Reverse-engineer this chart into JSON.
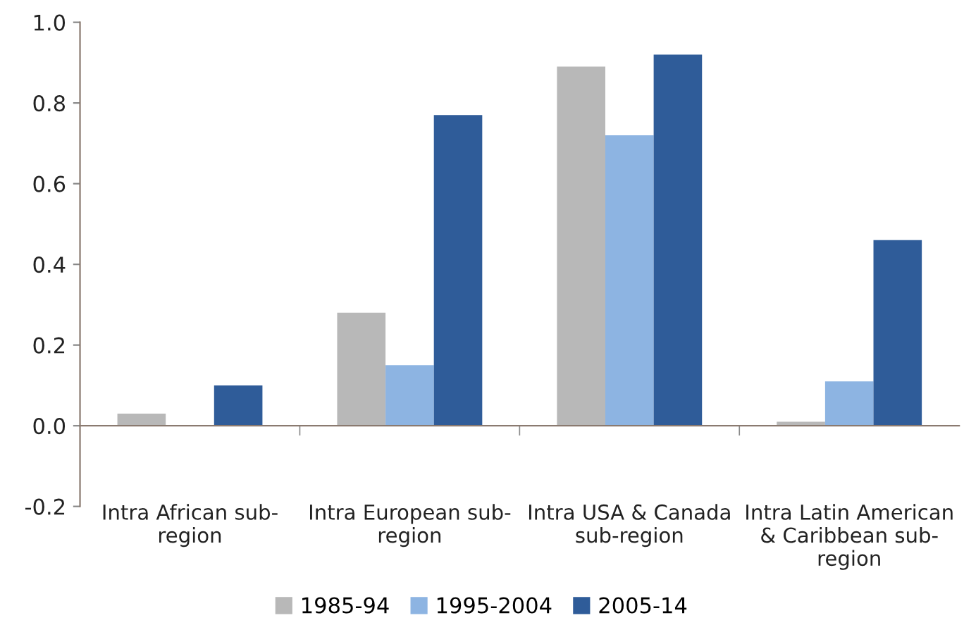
{
  "chart_data": {
    "type": "bar",
    "categories": [
      "Intra African sub-\nregion",
      "Intra European sub-\nregion",
      "Intra USA & Canada\nsub-region",
      "Intra Latin American\n& Caribbean sub-\nregion"
    ],
    "series": [
      {
        "name": "1985-94",
        "color": "#b8b8b8",
        "values": [
          0.03,
          0.28,
          0.89,
          0.01
        ]
      },
      {
        "name": "1995-2004",
        "color": "#8db4e2",
        "values": [
          null,
          0.15,
          0.72,
          0.11
        ]
      },
      {
        "name": "2005-14",
        "color": "#2f5c99",
        "values": [
          0.1,
          0.77,
          0.92,
          0.46
        ]
      }
    ],
    "ylim": [
      -0.2,
      1.0
    ],
    "yticks": [
      {
        "value": -0.2,
        "label": "-0.2"
      },
      {
        "value": 0,
        "label": "0.0"
      },
      {
        "value": 0.2,
        "label": "0.2"
      },
      {
        "value": 0.4,
        "label": "0.4"
      },
      {
        "value": 0.6,
        "label": "0.6"
      },
      {
        "value": 0.8,
        "label": "0.8"
      },
      {
        "value": 1.0,
        "label": "1.0"
      }
    ],
    "legend": "bottom"
  }
}
